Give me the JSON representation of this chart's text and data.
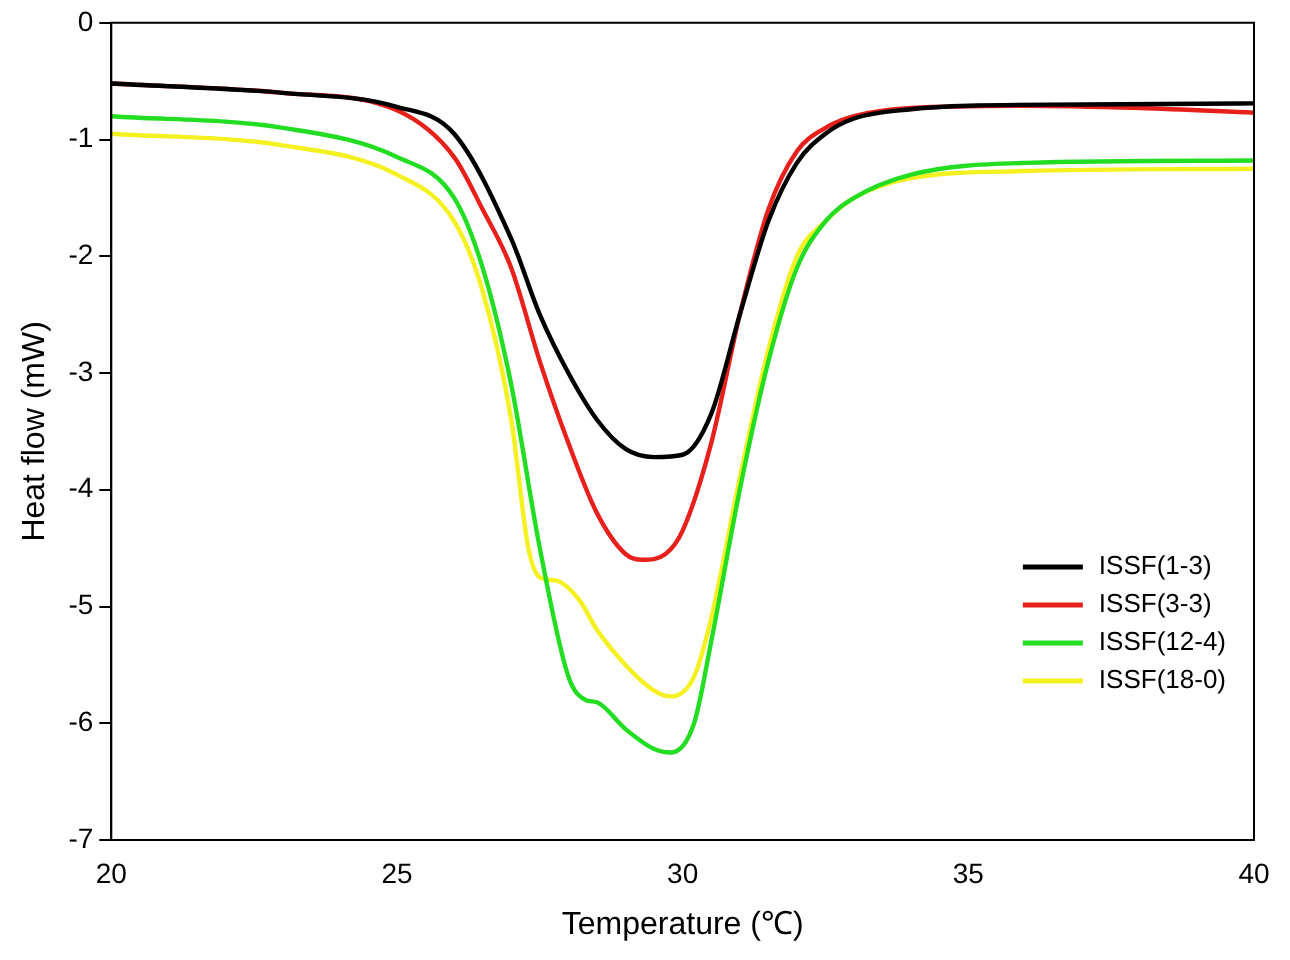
{
  "chart_data": {
    "type": "line",
    "xlabel": "Temperature (℃)",
    "ylabel": "Heat flow (mW)",
    "xlim": [
      20,
      40
    ],
    "xticks": [
      20,
      25,
      30,
      35,
      40
    ],
    "ylim": [
      -7,
      0
    ],
    "yticks": [
      -7,
      -6,
      -5,
      -4,
      -3,
      -2,
      -1,
      0
    ],
    "grid": false,
    "legend": "bottom right",
    "marker": "none",
    "line_style": "solid",
    "series": [
      {
        "name": "ISSF(1-3)",
        "color": "#000000",
        "x": [
          20,
          23,
          25,
          26,
          27,
          27.5,
          28,
          28.5,
          29,
          29.5,
          30,
          30.5,
          31,
          31.5,
          32,
          32.5,
          33,
          34,
          35,
          37,
          40
        ],
        "values": [
          -0.52,
          -0.6,
          -0.72,
          -0.95,
          -1.85,
          -2.5,
          -3.0,
          -3.4,
          -3.65,
          -3.72,
          -3.7,
          -3.35,
          -2.5,
          -1.7,
          -1.2,
          -0.95,
          -0.82,
          -0.74,
          -0.71,
          -0.7,
          -0.69
        ]
      },
      {
        "name": "ISSF(3-3)",
        "color": "#e8201c",
        "x": [
          20,
          23,
          25,
          26,
          26.5,
          27,
          27.5,
          28,
          28.5,
          29,
          29.3,
          29.7,
          30,
          30.5,
          31,
          31.5,
          32,
          32.5,
          33,
          34,
          36,
          38,
          40
        ],
        "values": [
          -0.52,
          -0.6,
          -0.75,
          -1.15,
          -1.6,
          -2.1,
          -2.9,
          -3.6,
          -4.2,
          -4.55,
          -4.6,
          -4.55,
          -4.35,
          -3.6,
          -2.5,
          -1.6,
          -1.1,
          -0.9,
          -0.8,
          -0.73,
          -0.71,
          -0.73,
          -0.77
        ]
      },
      {
        "name": "ISSF(12-4)",
        "color": "#22dd22",
        "x": [
          20,
          23,
          25,
          26,
          26.5,
          27,
          27.5,
          28,
          28.3,
          28.5,
          29,
          29.5,
          29.8,
          30.2,
          30.5,
          31,
          31.5,
          32,
          32.5,
          33,
          34,
          36,
          40
        ],
        "values": [
          -0.8,
          -0.9,
          -1.15,
          -1.5,
          -2.1,
          -3.1,
          -4.5,
          -5.6,
          -5.8,
          -5.82,
          -6.05,
          -6.22,
          -6.25,
          -6.0,
          -5.3,
          -4.0,
          -2.9,
          -2.1,
          -1.7,
          -1.5,
          -1.3,
          -1.2,
          -1.18
        ]
      },
      {
        "name": "ISSF(18-0)",
        "color": "#f5f020",
        "x": [
          20,
          23,
          25,
          26,
          26.5,
          27,
          27.3,
          27.5,
          27.8,
          28.2,
          28.5,
          29,
          29.5,
          29.8,
          30.2,
          30.5,
          31,
          31.5,
          32,
          32.5,
          33,
          34,
          36,
          40
        ],
        "values": [
          -0.95,
          -1.05,
          -1.3,
          -1.7,
          -2.3,
          -3.4,
          -4.5,
          -4.75,
          -4.78,
          -4.95,
          -5.2,
          -5.5,
          -5.72,
          -5.77,
          -5.6,
          -5.1,
          -3.9,
          -2.8,
          -2.0,
          -1.7,
          -1.5,
          -1.33,
          -1.27,
          -1.25
        ]
      }
    ]
  }
}
